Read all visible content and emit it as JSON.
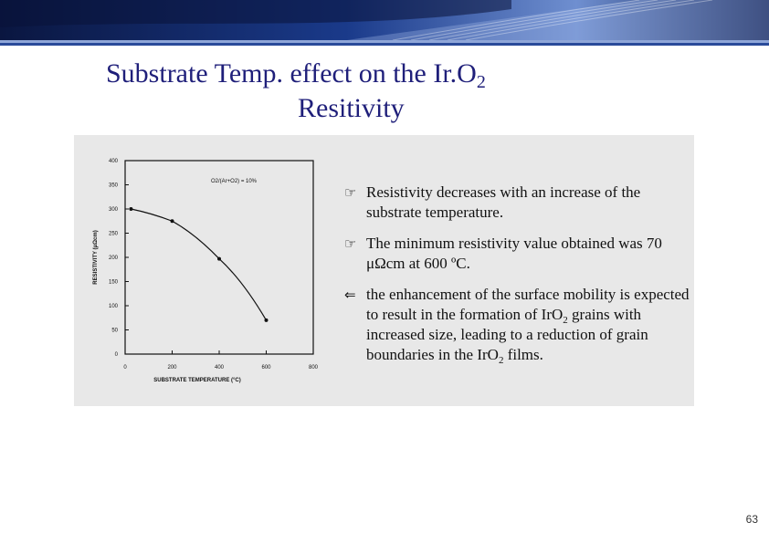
{
  "slide": {
    "title_line1_main": "Substrate Temp. effect on the Ir.O",
    "title_line1_sub": "2",
    "title_line2": "Resitivity",
    "page_number": "63"
  },
  "notes": [
    {
      "icon": "pointing-hand-icon",
      "text": "Resistivity decreases with an increase of the substrate temperature."
    },
    {
      "icon": "pointing-hand-icon",
      "text": "The minimum resistivity value obtained was 70 μΩcm at 600 ºC."
    },
    {
      "icon": "left-arrow-icon",
      "text_a": "the enhancement of the surface mobility is expected to result in the formation of IrO",
      "sub_a": "2",
      "text_b": " grains with increased size, leading to a reduction of grain boundaries in the IrO",
      "sub_b": "2",
      "text_c": " films."
    }
  ],
  "colors": {
    "title": "#1f1f7a",
    "banner_dark": "#0c1b4d",
    "banner_light": "#5f7fc0"
  },
  "chart_data": {
    "type": "line",
    "xlabel": "SUBSTRATE TEMPERATURE (°C)",
    "ylabel": "RESISTIVITY (μΩcm)",
    "annotation": "O2/(Ar+O2) = 10%",
    "xlim": [
      0,
      800
    ],
    "ylim": [
      0,
      400
    ],
    "xticks": [
      0,
      200,
      400,
      600,
      800
    ],
    "yticks": [
      0,
      50,
      100,
      150,
      200,
      250,
      300,
      350,
      400
    ],
    "series": [
      {
        "x": [
          25,
          200,
          400,
          600
        ],
        "y": [
          300,
          275,
          197,
          70
        ]
      }
    ],
    "grid": false
  }
}
